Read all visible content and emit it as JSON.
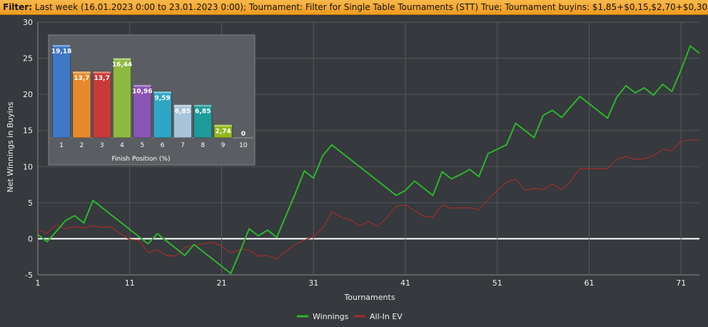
{
  "filter": {
    "prefix": "Filter:",
    "text": "Last week (16.01.2023 0:00 to 23.01.2023 0:00); Tournament: Filter for Single Table Tournaments (STT) True; Tournament buyins: $1,85+$0,15,$2,70+$0,30"
  },
  "colors": {
    "background": "#36393d",
    "grid": "#55585c",
    "zero_line": "#ffffff",
    "winnings": "#2db52d",
    "allin_ev": "#9a2f2f"
  },
  "chart_data": [
    {
      "type": "line",
      "xlabel": "Tournaments",
      "ylabel": "Net Winnings in Buyins",
      "xlim": [
        1,
        73
      ],
      "ylim": [
        -5,
        30
      ],
      "x_ticks": [
        "1",
        "11",
        "21",
        "31",
        "41",
        "51",
        "61",
        "71"
      ],
      "y_ticks": [
        "-5",
        "0",
        "5",
        "10",
        "15",
        "20",
        "25",
        "30"
      ],
      "grid": true,
      "legend_position": "bottom-center",
      "series": [
        {
          "name": "Winnings",
          "color": "#2db52d",
          "x": [
            1,
            2,
            3,
            4,
            5,
            6,
            7,
            8,
            9,
            10,
            11,
            12,
            13,
            14,
            15,
            16,
            17,
            18,
            19,
            20,
            21,
            22,
            23,
            24,
            25,
            26,
            27,
            28,
            29,
            30,
            31,
            32,
            33,
            34,
            35,
            36,
            37,
            38,
            39,
            40,
            41,
            42,
            43,
            44,
            45,
            46,
            47,
            48,
            49,
            50,
            51,
            52,
            53,
            54,
            55,
            56,
            57,
            58,
            59,
            60,
            61,
            62,
            63,
            64,
            65,
            66,
            67,
            68,
            69,
            70,
            71,
            72,
            73
          ],
          "y": [
            0.6,
            -0.4,
            1.0,
            2.5,
            3.2,
            2.2,
            5.3,
            4.3,
            3.3,
            2.3,
            1.3,
            0.3,
            -0.7,
            0.7,
            -0.3,
            -1.3,
            -2.3,
            -0.8,
            -1.8,
            -2.8,
            -3.8,
            -4.8,
            -1.8,
            1.4,
            0.4,
            1.2,
            0.2,
            3.2,
            6.2,
            9.4,
            8.4,
            11.5,
            13.0,
            12.0,
            11.0,
            10.0,
            9.0,
            8.0,
            7.0,
            6.0,
            6.7,
            8.0,
            7.0,
            6.0,
            9.3,
            8.3,
            8.9,
            9.6,
            8.6,
            11.8,
            12.4,
            13.0,
            16.0,
            15.0,
            14.0,
            17.1,
            17.8,
            16.8,
            18.3,
            19.7,
            18.7,
            17.7,
            16.7,
            19.6,
            21.2,
            20.2,
            20.9,
            19.9,
            21.4,
            20.4,
            23.4,
            26.7,
            25.7
          ]
        },
        {
          "name": "All-In EV",
          "color": "#9a2f2f",
          "x": [
            1,
            2,
            3,
            4,
            5,
            6,
            7,
            8,
            9,
            10,
            11,
            12,
            13,
            14,
            15,
            16,
            17,
            18,
            19,
            20,
            21,
            22,
            23,
            24,
            25,
            26,
            27,
            28,
            29,
            30,
            31,
            32,
            33,
            34,
            35,
            36,
            37,
            38,
            39,
            40,
            41,
            42,
            43,
            44,
            45,
            46,
            47,
            48,
            49,
            50,
            51,
            52,
            53,
            54,
            55,
            56,
            57,
            58,
            59,
            60,
            61,
            62,
            63,
            64,
            65,
            66,
            67,
            68,
            69,
            70,
            71,
            72,
            73
          ],
          "y": [
            1.2,
            0.8,
            1.9,
            1.4,
            1.7,
            1.5,
            1.8,
            1.6,
            1.6,
            0.7,
            -0.1,
            -0.2,
            -1.9,
            -1.5,
            -2.3,
            -2.4,
            -1.2,
            -0.9,
            -0.7,
            -0.5,
            -1.0,
            -2.0,
            -1.5,
            -1.5,
            -2.4,
            -2.3,
            -2.8,
            -1.7,
            -0.8,
            -0.2,
            0.3,
            1.5,
            3.7,
            3.0,
            2.6,
            1.8,
            2.4,
            1.7,
            3.0,
            4.5,
            4.7,
            3.9,
            3.1,
            3.0,
            4.7,
            4.2,
            4.3,
            4.3,
            4.0,
            5.5,
            6.7,
            7.8,
            8.3,
            6.7,
            7.0,
            6.8,
            7.6,
            6.8,
            8.0,
            9.7,
            9.7,
            9.7,
            9.7,
            11.0,
            11.4,
            11.0,
            11.1,
            11.5,
            12.4,
            12.2,
            13.5,
            13.7,
            13.6
          ]
        }
      ]
    },
    {
      "type": "bar",
      "xlabel": "Finish Position (%)",
      "categories": [
        "1",
        "2",
        "3",
        "4",
        "5",
        "6",
        "7",
        "8",
        "9",
        "10"
      ],
      "values": [
        19.18,
        13.7,
        13.7,
        16.44,
        10.96,
        9.59,
        6.85,
        6.85,
        2.74,
        0
      ],
      "value_labels": [
        "19,18",
        "13,7",
        "13,7",
        "16,44",
        "10,96",
        "9,59",
        "6,85",
        "6,85",
        "2,74",
        "0"
      ],
      "colors": [
        "#3f78c6",
        "#e88a2c",
        "#c83a3a",
        "#8cba3e",
        "#8a55b4",
        "#2ea6c4",
        "#a8c4da",
        "#1f9a9a",
        "#8fb81c",
        "#888888"
      ],
      "ylim": [
        0,
        20
      ]
    }
  ]
}
